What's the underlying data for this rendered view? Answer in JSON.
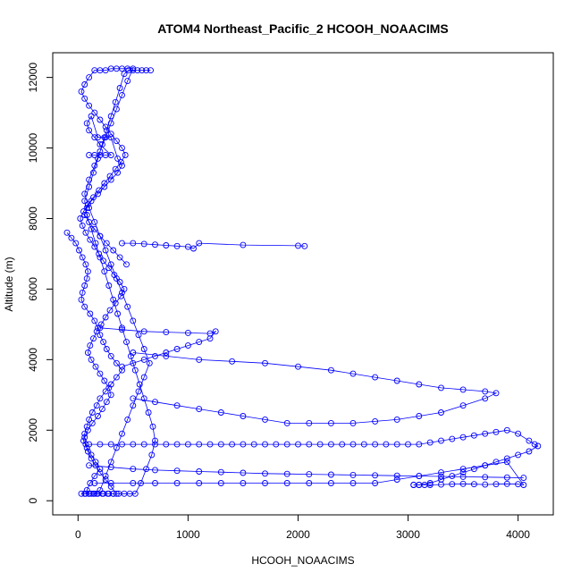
{
  "chart_data": {
    "type": "scatter",
    "title": "ATOM4 Northeast_Pacific_2 HCOOH_NOAACIMS",
    "xlabel": "HCOOH_NOAACIMS",
    "ylabel": "Altitude (m)",
    "xlim": [
      -230,
      4320
    ],
    "ylim": [
      -400,
      12700
    ],
    "xticks": [
      0,
      1000,
      2000,
      3000,
      4000
    ],
    "yticks": [
      0,
      2000,
      4000,
      6000,
      8000,
      10000,
      12000
    ],
    "series_color": "#0000ff",
    "marker": "open-circle",
    "connected": true,
    "series": [
      {
        "x": [
          -100,
          -60,
          -20,
          10,
          40,
          70,
          90,
          80,
          60,
          40,
          30,
          60,
          110,
          150,
          180,
          200,
          230,
          260,
          300,
          350,
          400,
          350,
          300,
          250,
          200,
          170,
          130,
          100,
          80,
          60,
          50,
          80,
          120,
          160,
          200,
          150,
          110,
          80,
          100,
          140,
          180,
          230,
          280,
          320,
          350,
          300,
          250,
          200,
          160,
          120,
          90,
          70,
          60,
          90,
          130,
          180,
          220,
          260,
          300,
          280,
          240,
          200,
          160,
          120,
          90,
          110,
          140,
          170,
          210,
          250,
          290,
          340,
          390,
          420,
          380,
          330,
          280,
          230,
          190,
          150,
          110,
          70,
          40,
          20,
          50,
          90,
          140,
          190,
          240,
          290,
          340,
          390,
          430,
          400,
          350,
          300,
          250,
          200,
          150,
          100,
          60,
          30,
          60,
          100,
          150,
          200,
          250,
          300,
          350,
          400,
          450,
          500,
          450,
          400,
          350,
          300,
          250,
          200,
          150,
          100,
          60,
          100,
          150,
          200,
          250,
          300,
          350,
          400,
          450,
          500,
          550,
          600,
          650,
          600,
          550,
          500,
          450,
          400,
          350,
          300,
          250,
          200,
          150,
          100,
          60,
          30,
          70,
          120,
          170,
          220,
          270,
          320,
          370,
          420,
          470,
          520,
          570,
          620,
          670,
          700,
          680,
          640,
          600,
          560,
          520,
          480,
          440,
          400,
          360,
          320,
          280,
          240,
          200,
          160,
          120,
          80,
          60,
          100,
          140,
          180,
          220,
          260,
          300,
          340,
          380,
          420,
          460,
          500,
          540,
          580,
          620,
          660
        ],
        "y": [
          7600,
          7450,
          7300,
          7100,
          6900,
          6700,
          6500,
          6300,
          6100,
          5900,
          5700,
          5500,
          5300,
          5100,
          4900,
          4700,
          4500,
          4300,
          4100,
          3900,
          3700,
          3500,
          3300,
          3100,
          2900,
          2700,
          2500,
          2300,
          2100,
          1900,
          1700,
          1500,
          1300,
          1100,
          900,
          700,
          500,
          300,
          200,
          200,
          200,
          200,
          200,
          200,
          200,
          400,
          600,
          800,
          1000,
          1200,
          1400,
          1600,
          1800,
          2000,
          2200,
          2400,
          2600,
          2800,
          3000,
          3200,
          3400,
          3600,
          3800,
          4000,
          4200,
          4400,
          4600,
          4800,
          5000,
          5200,
          5400,
          5600,
          5800,
          6000,
          6200,
          6400,
          6600,
          6800,
          7000,
          7200,
          7400,
          7600,
          7800,
          8000,
          8200,
          8400,
          8600,
          8800,
          9000,
          9200,
          9400,
          9600,
          9800,
          10000,
          10200,
          10400,
          10600,
          10800,
          11000,
          11200,
          11400,
          11600,
          11800,
          12000,
          12200,
          12200,
          12200,
          12250,
          12250,
          12250,
          12250,
          12250,
          11900,
          11500,
          11100,
          10700,
          10300,
          9900,
          9500,
          9100,
          8700,
          8300,
          7900,
          7500,
          7100,
          6700,
          6300,
          5900,
          5500,
          5100,
          4700,
          4300,
          3900,
          3500,
          3100,
          2700,
          2300,
          1900,
          1500,
          1100,
          700,
          300,
          200,
          200,
          200,
          200,
          200,
          200,
          200,
          200,
          200,
          200,
          200,
          200,
          200,
          200,
          500,
          900,
          1300,
          1700,
          2100,
          2500,
          2900,
          3300,
          3700,
          4100,
          4500,
          4900,
          5300,
          5700,
          6100,
          6500,
          6900,
          7300,
          7700,
          8100,
          8500,
          8900,
          9300,
          9700,
          10100,
          10500,
          10900,
          11300,
          11700,
          12100,
          12200,
          12200,
          12200,
          12200,
          12200,
          12200
        ]
      },
      {
        "x": [
          100,
          200,
          300,
          400,
          500,
          600,
          700,
          800,
          900,
          1000,
          1100,
          1200,
          1300,
          1400,
          1500,
          1600,
          1700,
          1800,
          1900,
          2000,
          2100,
          2200,
          2300,
          2400,
          2500,
          2600,
          2700,
          2800,
          2900,
          3000,
          3100,
          3200,
          3300,
          3400,
          3500,
          3600,
          3700,
          3800,
          3900,
          4000,
          4100,
          4150,
          4180,
          4100,
          4000,
          3900,
          3800,
          3700,
          3600,
          3500,
          3400,
          3300,
          3200,
          3100,
          3050
        ],
        "y": [
          1600,
          1600,
          1600,
          1600,
          1600,
          1600,
          1600,
          1600,
          1600,
          1600,
          1600,
          1600,
          1600,
          1600,
          1600,
          1600,
          1600,
          1600,
          1600,
          1600,
          1600,
          1600,
          1600,
          1600,
          1600,
          1600,
          1600,
          1600,
          1600,
          1600,
          1600,
          1650,
          1700,
          1750,
          1800,
          1850,
          1900,
          1950,
          2000,
          1900,
          1700,
          1600,
          1550,
          1400,
          1300,
          1200,
          1100,
          1000,
          900,
          800,
          700,
          600,
          500,
          450,
          450
        ]
      },
      {
        "x": [
          3050,
          3100,
          3150,
          3200,
          3300,
          3400,
          3500,
          3600,
          3700,
          3800,
          3900,
          4000,
          4050,
          3900,
          3700,
          3500,
          3300,
          3100,
          2900,
          2700,
          2500,
          2300,
          2100,
          1900,
          1700,
          1500,
          1300,
          1100,
          900,
          700,
          500,
          300,
          150
        ],
        "y": [
          450,
          450,
          450,
          450,
          460,
          470,
          480,
          470,
          460,
          470,
          480,
          470,
          450,
          1100,
          1000,
          900,
          800,
          700,
          600,
          500,
          500,
          500,
          500,
          500,
          500,
          500,
          500,
          500,
          500,
          500,
          500,
          500,
          500
        ]
      },
      {
        "x": [
          500,
          800,
          1100,
          1400,
          1700,
          2000,
          2300,
          2500,
          2700,
          2900,
          3100,
          3300,
          3500,
          3700,
          3800,
          3700,
          3500,
          3300,
          3100,
          2900,
          2700,
          2500,
          2300,
          2100,
          1900,
          1700,
          1500,
          1300,
          1100,
          900,
          700,
          500
        ],
        "y": [
          4200,
          4100,
          4000,
          3950,
          3900,
          3800,
          3700,
          3600,
          3500,
          3400,
          3300,
          3200,
          3150,
          3100,
          3050,
          2900,
          2700,
          2500,
          2400,
          2300,
          2250,
          2200,
          2200,
          2200,
          2200,
          2300,
          2400,
          2500,
          2600,
          2700,
          2800,
          2900
        ]
      },
      {
        "x": [
          400,
          500,
          600,
          700,
          800,
          900,
          1000,
          1050,
          1100,
          1500,
          2000,
          2060
        ],
        "y": [
          7300,
          7300,
          7280,
          7260,
          7240,
          7220,
          7200,
          7150,
          7300,
          7250,
          7230,
          7220
        ]
      },
      {
        "x": [
          200,
          400,
          600,
          800,
          1000,
          1200,
          1250,
          1200,
          1100,
          1000,
          900,
          800,
          700,
          600,
          500,
          400
        ],
        "y": [
          4900,
          4850,
          4800,
          4780,
          4760,
          4740,
          4800,
          4600,
          4500,
          4400,
          4300,
          4200,
          4100,
          4000,
          3900,
          3800
        ]
      },
      {
        "x": [
          100,
          300,
          500,
          700,
          900,
          1100,
          1300,
          1500,
          1700,
          1900,
          2100,
          2300,
          2500,
          2700,
          2900,
          3100,
          3300,
          3500,
          3700,
          3900,
          4050
        ],
        "y": [
          1000,
          950,
          900,
          870,
          850,
          830,
          810,
          790,
          770,
          760,
          750,
          740,
          730,
          720,
          710,
          700,
          690,
          680,
          670,
          660,
          650
        ]
      },
      {
        "x": [
          100,
          150,
          200,
          250,
          300,
          200,
          150,
          100,
          80,
          120,
          180,
          240,
          300,
          360,
          400,
          360,
          300,
          240,
          180,
          120,
          80,
          60,
          100,
          150,
          200,
          260,
          320,
          380,
          440
        ],
        "y": [
          9800,
          9800,
          9800,
          9800,
          9800,
          10100,
          10300,
          10500,
          10700,
          10900,
          10300,
          10300,
          10300,
          9700,
          9500,
          9300,
          9100,
          8900,
          8700,
          8500,
          8300,
          8100,
          7900,
          7700,
          7500,
          7300,
          7100,
          6900,
          6700
        ]
      }
    ]
  }
}
